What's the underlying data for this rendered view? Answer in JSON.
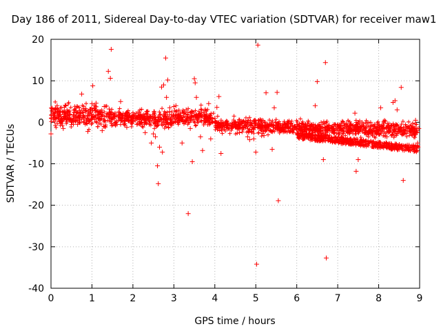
{
  "chart_data": {
    "type": "scatter",
    "title": "Day 186 of 2011, Sidereal Day-to-day VTEC variation (SDTVAR) for receiver maw1",
    "xlabel": "GPS time / hours",
    "ylabel": "SDTVAR / TECUs",
    "xlim": [
      0,
      9
    ],
    "ylim": [
      -40,
      20
    ],
    "xticks": [
      0,
      1,
      2,
      3,
      4,
      5,
      6,
      7,
      8,
      9
    ],
    "yticks": [
      -40,
      -30,
      -20,
      -10,
      0,
      10,
      20
    ],
    "grid": true,
    "marker": "+",
    "color": "#ff0000",
    "series": [
      {
        "name": "SDTVAR maw1",
        "points": [
          [
            0.0,
            -2.8
          ],
          [
            0.05,
            2.5
          ],
          [
            0.1,
            1.2
          ],
          [
            0.15,
            4.0
          ],
          [
            0.2,
            2.6
          ],
          [
            0.25,
            3.5
          ],
          [
            0.3,
            -1.5
          ],
          [
            0.35,
            4.1
          ],
          [
            0.4,
            2.2
          ],
          [
            0.45,
            1.8
          ],
          [
            0.5,
            0.5
          ],
          [
            0.55,
            1.8
          ],
          [
            0.6,
            1.2
          ],
          [
            0.65,
            -0.5
          ],
          [
            0.7,
            1.6
          ],
          [
            0.75,
            6.8
          ],
          [
            0.8,
            1.1
          ],
          [
            0.85,
            2.8
          ],
          [
            0.9,
            -2.2
          ],
          [
            0.95,
            3.1
          ],
          [
            1.0,
            4.5
          ],
          [
            1.02,
            8.8
          ],
          [
            1.05,
            1.5
          ],
          [
            1.1,
            4.6
          ],
          [
            1.15,
            0.8
          ],
          [
            1.2,
            2.6
          ],
          [
            1.25,
            -2.0
          ],
          [
            1.3,
            3.8
          ],
          [
            1.35,
            1.5
          ],
          [
            1.4,
            12.3
          ],
          [
            1.42,
            3.2
          ],
          [
            1.45,
            10.6
          ],
          [
            1.47,
            17.6
          ],
          [
            1.5,
            2.0
          ],
          [
            1.55,
            1.5
          ],
          [
            1.6,
            0.2
          ],
          [
            1.65,
            2.5
          ],
          [
            1.7,
            5.0
          ],
          [
            1.75,
            1.2
          ],
          [
            1.8,
            0.3
          ],
          [
            1.85,
            -1.2
          ],
          [
            1.9,
            1.0
          ],
          [
            1.95,
            0.5
          ],
          [
            2.0,
            0.2
          ],
          [
            2.1,
            -0.5
          ],
          [
            2.2,
            -0.2
          ],
          [
            2.3,
            -2.5
          ],
          [
            2.4,
            -0.5
          ],
          [
            2.45,
            -5.0
          ],
          [
            2.5,
            -2.8
          ],
          [
            2.55,
            -3.5
          ],
          [
            2.6,
            -10.5
          ],
          [
            2.62,
            -14.8
          ],
          [
            2.65,
            -6.0
          ],
          [
            2.7,
            8.5
          ],
          [
            2.72,
            -7.2
          ],
          [
            2.75,
            9.0
          ],
          [
            2.8,
            15.5
          ],
          [
            2.82,
            6.0
          ],
          [
            2.85,
            10.2
          ],
          [
            2.9,
            3.5
          ],
          [
            2.95,
            2.5
          ],
          [
            3.0,
            3.8
          ],
          [
            3.05,
            4.0
          ],
          [
            3.1,
            1.5
          ],
          [
            3.15,
            2.2
          ],
          [
            3.2,
            -5.0
          ],
          [
            3.25,
            2.6
          ],
          [
            3.3,
            3.0
          ],
          [
            3.35,
            -22.0
          ],
          [
            3.4,
            -1.5
          ],
          [
            3.45,
            -9.5
          ],
          [
            3.5,
            10.5
          ],
          [
            3.52,
            9.5
          ],
          [
            3.55,
            6.0
          ],
          [
            3.6,
            1.5
          ],
          [
            3.65,
            -3.5
          ],
          [
            3.7,
            -6.8
          ],
          [
            3.75,
            1.0
          ],
          [
            3.8,
            2.0
          ],
          [
            3.85,
            4.5
          ],
          [
            3.9,
            -4.0
          ],
          [
            3.95,
            0.8
          ],
          [
            4.0,
            1.0
          ],
          [
            4.05,
            3.6
          ],
          [
            4.1,
            6.2
          ],
          [
            4.15,
            -7.5
          ],
          [
            4.2,
            -1.0
          ],
          [
            4.3,
            -0.8
          ],
          [
            4.4,
            -1.5
          ],
          [
            4.5,
            -1.0
          ],
          [
            4.6,
            -2.5
          ],
          [
            4.7,
            -1.3
          ],
          [
            4.8,
            -3.5
          ],
          [
            4.85,
            -4.2
          ],
          [
            4.9,
            -2.4
          ],
          [
            4.95,
            -4.0
          ],
          [
            5.0,
            -7.2
          ],
          [
            5.02,
            -34.2
          ],
          [
            5.05,
            18.6
          ],
          [
            5.1,
            -1.5
          ],
          [
            5.15,
            0.5
          ],
          [
            5.2,
            -3.2
          ],
          [
            5.25,
            7.1
          ],
          [
            5.3,
            -1.0
          ],
          [
            5.35,
            -2.0
          ],
          [
            5.4,
            -6.5
          ],
          [
            5.45,
            3.5
          ],
          [
            5.5,
            -0.8
          ],
          [
            5.52,
            7.2
          ],
          [
            5.55,
            -18.9
          ],
          [
            5.6,
            -1.2
          ],
          [
            5.65,
            -0.8
          ],
          [
            5.7,
            -2.2
          ],
          [
            5.8,
            -1.0
          ],
          [
            5.9,
            -0.8
          ],
          [
            6.0,
            -0.5
          ],
          [
            6.1,
            -1.5
          ],
          [
            6.2,
            -1.0
          ],
          [
            6.3,
            -1.8
          ],
          [
            6.4,
            -2.0
          ],
          [
            6.45,
            4.0
          ],
          [
            6.5,
            9.8
          ],
          [
            6.55,
            -4.5
          ],
          [
            6.6,
            -1.2
          ],
          [
            6.65,
            -9.0
          ],
          [
            6.7,
            14.4
          ],
          [
            6.72,
            -32.7
          ],
          [
            6.75,
            -2.0
          ],
          [
            6.8,
            -1.5
          ],
          [
            6.9,
            -2.5
          ],
          [
            7.0,
            -1.2
          ],
          [
            7.1,
            -3.5
          ],
          [
            7.2,
            -1.5
          ],
          [
            7.3,
            -4.0
          ],
          [
            7.4,
            -1.8
          ],
          [
            7.42,
            2.2
          ],
          [
            7.45,
            -11.8
          ],
          [
            7.5,
            -9.0
          ],
          [
            7.6,
            -2.0
          ],
          [
            7.7,
            -4.5
          ],
          [
            7.8,
            -2.5
          ],
          [
            7.9,
            -5.5
          ],
          [
            8.0,
            -2.8
          ],
          [
            8.05,
            3.5
          ],
          [
            8.1,
            -5.5
          ],
          [
            8.2,
            -3.5
          ],
          [
            8.3,
            -6.0
          ],
          [
            8.35,
            4.8
          ],
          [
            8.4,
            5.2
          ],
          [
            8.45,
            3.0
          ],
          [
            8.5,
            -6.5
          ],
          [
            8.55,
            8.4
          ],
          [
            8.6,
            -14.0
          ],
          [
            8.65,
            -6.0
          ],
          [
            8.7,
            -2.0
          ],
          [
            8.75,
            -6.5
          ],
          [
            8.8,
            -1.5
          ],
          [
            8.85,
            -5.5
          ],
          [
            8.9,
            0.5
          ],
          [
            8.95,
            -5.0
          ],
          [
            8.98,
            -1.5
          ]
        ]
      }
    ]
  }
}
